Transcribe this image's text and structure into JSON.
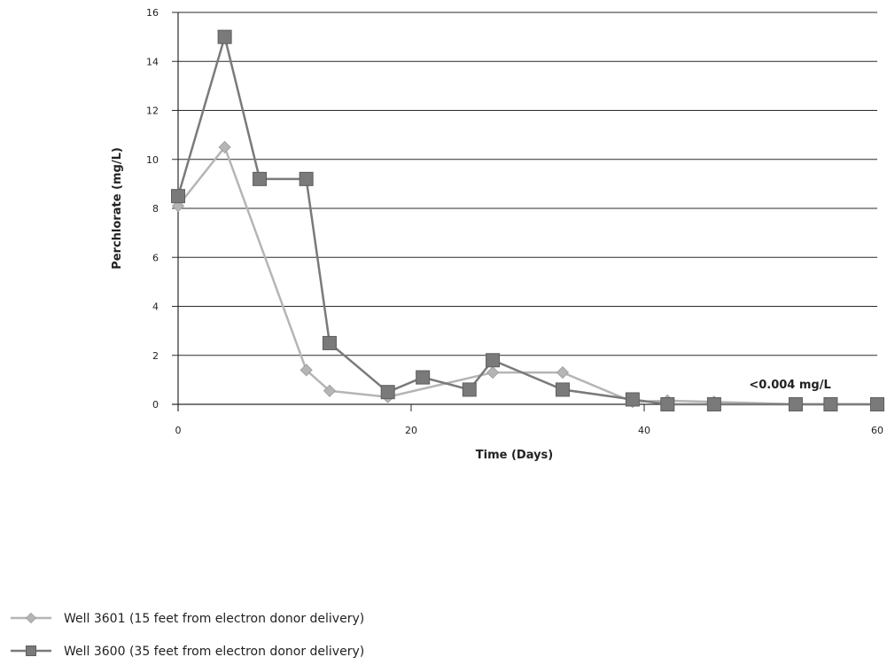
{
  "chart_data": {
    "type": "line",
    "title": "",
    "xlabel": "Time (Days)",
    "ylabel": "Perchlorate (mg/L)",
    "xlim": [
      0,
      60
    ],
    "ylim": [
      0,
      16
    ],
    "xticks": [
      0,
      20,
      40,
      60
    ],
    "yticks": [
      0,
      2,
      4,
      6,
      8,
      10,
      12,
      14,
      16
    ],
    "grid": "horizontal",
    "legend_position": "bottom-left",
    "annotation": {
      "text": "<0.004 mg/L",
      "x": 49,
      "y": 0.4
    },
    "series": [
      {
        "name": "Well 3601 (15 feet from electron donor delivery)",
        "marker": "diamond",
        "color": "#b5b5b5",
        "x": [
          0,
          4,
          11,
          13,
          18,
          27,
          33,
          39,
          42,
          46,
          53,
          56,
          60
        ],
        "y": [
          8.1,
          10.5,
          1.4,
          0.55,
          0.3,
          1.3,
          1.3,
          0.1,
          0.15,
          0.1,
          0.0,
          0.0,
          0.0
        ]
      },
      {
        "name": "Well 3600 (35 feet from electron donor delivery)",
        "marker": "square",
        "color": "#7a7a7a",
        "x": [
          0,
          4,
          7,
          11,
          13,
          18,
          21,
          25,
          27,
          33,
          39,
          42,
          46,
          53,
          56,
          60
        ],
        "y": [
          8.5,
          15.0,
          9.2,
          9.2,
          2.5,
          0.5,
          1.1,
          0.6,
          1.8,
          0.6,
          0.2,
          0.0,
          0.0,
          0.0,
          0.0,
          0.0
        ]
      }
    ]
  }
}
